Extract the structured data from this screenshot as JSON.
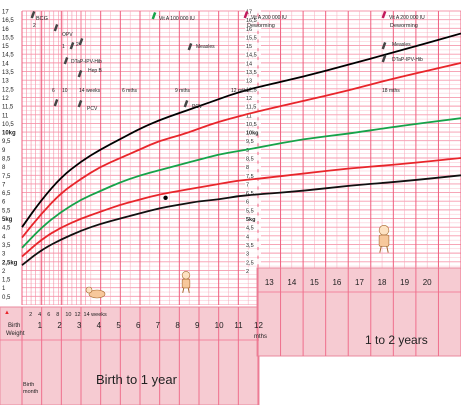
{
  "chart_data": {
    "type": "line",
    "y_ticks": [
      "17",
      "16,5",
      "16",
      "15,5",
      "15",
      "14,5",
      "14",
      "13,5",
      "13",
      "12,5",
      "12",
      "11,5",
      "11",
      "10,5",
      "10kg",
      "9,5",
      "9",
      "8,5",
      "8",
      "7,5",
      "7",
      "6,5",
      "6",
      "5,5",
      "5kg",
      "4,5",
      "4",
      "3,5",
      "3",
      "2,5kg",
      "2",
      "1,5",
      "1",
      "0,5"
    ],
    "y_ticks_mid": [
      "17",
      "16,5",
      "16",
      "15,5",
      "15",
      "14,5",
      "14",
      "13,5",
      "13",
      "12,5",
      "12",
      "11,5",
      "11",
      "10,5",
      "10kg",
      "9,5",
      "9",
      "8,5",
      "8",
      "7,5",
      "7",
      "6,5",
      "6",
      "5,5",
      "5kg",
      "4,5",
      "4",
      "3,5",
      "3",
      "2,5",
      "2"
    ],
    "ylim": [
      0,
      17
    ],
    "xlim_months": [
      0,
      21
    ],
    "x_months_year1": [
      "1",
      "2",
      "3",
      "4",
      "5",
      "6",
      "7",
      "8",
      "9",
      "10",
      "11",
      "12"
    ],
    "x_weeks": [
      "2",
      "4",
      "6",
      "8",
      "10",
      "12",
      "14 weeks"
    ],
    "x_months_year2": [
      "13",
      "14",
      "15",
      "16",
      "17",
      "18",
      "19",
      "20"
    ],
    "birth_weight_label": "Birth\nWeight",
    "birth_month_label": "Birth\nmonth",
    "months_suffix": "mths",
    "year1_label": "Birth to 1 year",
    "year2_label": "1 to 2 years",
    "series": [
      {
        "color": "#000000",
        "x": [
          0,
          1,
          2,
          3,
          4,
          5,
          6,
          7,
          8,
          9,
          10,
          11,
          12,
          14,
          16,
          18,
          21
        ],
        "values": [
          4.5,
          6.1,
          7.4,
          8.3,
          9.0,
          9.6,
          10.2,
          10.7,
          11.1,
          11.5,
          11.9,
          12.3,
          12.6,
          13.2,
          13.9,
          14.6,
          15.7
        ]
      },
      {
        "color": "#e8262b",
        "x": [
          0,
          1,
          2,
          3,
          4,
          5,
          6,
          7,
          8,
          9,
          10,
          11,
          12,
          14,
          16,
          18,
          21
        ],
        "values": [
          3.9,
          5.3,
          6.5,
          7.3,
          8.0,
          8.5,
          9.0,
          9.5,
          9.8,
          10.2,
          10.6,
          10.9,
          11.2,
          11.8,
          12.4,
          13.1,
          14.0
        ]
      },
      {
        "color": "#16a34a",
        "x": [
          0,
          1,
          2,
          3,
          4,
          5,
          6,
          7,
          8,
          9,
          10,
          11,
          12,
          14,
          16,
          18,
          21
        ],
        "values": [
          3.3,
          4.5,
          5.4,
          6.1,
          6.6,
          7.1,
          7.5,
          7.8,
          8.1,
          8.4,
          8.7,
          8.9,
          9.1,
          9.6,
          9.9,
          10.3,
          10.8
        ]
      },
      {
        "color": "#e8262b",
        "x": [
          0,
          1,
          2,
          3,
          4,
          5,
          6,
          7,
          8,
          9,
          10,
          11,
          12,
          14,
          16,
          18,
          21
        ],
        "values": [
          2.8,
          3.8,
          4.5,
          5.0,
          5.4,
          5.8,
          6.1,
          6.4,
          6.6,
          6.8,
          7.0,
          7.2,
          7.3,
          7.6,
          7.9,
          8.1,
          8.5
        ]
      },
      {
        "color": "#111111",
        "x": [
          0,
          1,
          2,
          3,
          4,
          5,
          6,
          7,
          8,
          9,
          10,
          11,
          12,
          14,
          16,
          18,
          21
        ],
        "values": [
          2.3,
          3.2,
          3.8,
          4.3,
          4.7,
          5.0,
          5.3,
          5.6,
          5.8,
          6.0,
          6.1,
          6.3,
          6.4,
          6.6,
          6.9,
          7.1,
          7.5
        ]
      }
    ],
    "point": {
      "x": 7.3,
      "y": 6.2
    },
    "annotations": {
      "bcg": "BCG",
      "bcg_num": "2",
      "opv0": "OPV",
      "opv_nums": [
        "1",
        "2",
        "3"
      ],
      "dtap": "DTaP-IPV-Hib",
      "hepb": "Hep B",
      "pcv": "PCV",
      "vita_1": "Vit A 100 000 IU",
      "vita_2": "Vit A 200 000 IU",
      "deworming": "Deworming",
      "measles": "Measles",
      "age_6": "6",
      "age_10": "10",
      "age_14w": "14 weeks",
      "age_6m": "6 mths",
      "age_9m": "9 mths",
      "age_12m": "12 mths",
      "age_18m": "18 mths"
    }
  }
}
